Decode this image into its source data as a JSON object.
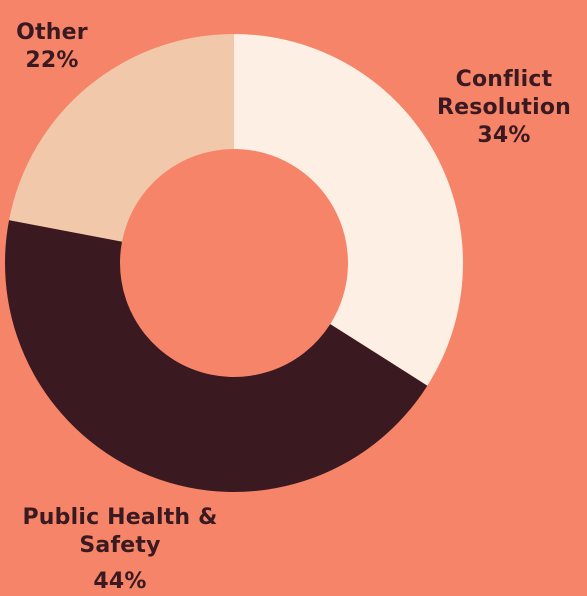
{
  "chart_data": {
    "type": "pie",
    "slices": [
      {
        "name": "Conflict Resolution",
        "value": 34,
        "label": "34%",
        "color": "#FDEFE3"
      },
      {
        "name": "Public Health & Safety",
        "value": 44,
        "label": "44%",
        "color": "#3A1A20"
      },
      {
        "name": "Other",
        "value": 22,
        "label": "22%",
        "color": "#F2C8AA"
      }
    ],
    "title": "",
    "background": "#F58469"
  },
  "labels": {
    "conflict": {
      "name": "Conflict Resolution",
      "pct": "34%"
    },
    "public": {
      "name": "Public Health & Safety",
      "pct": "44%"
    },
    "other": {
      "name": "Other",
      "pct": "22%"
    }
  }
}
